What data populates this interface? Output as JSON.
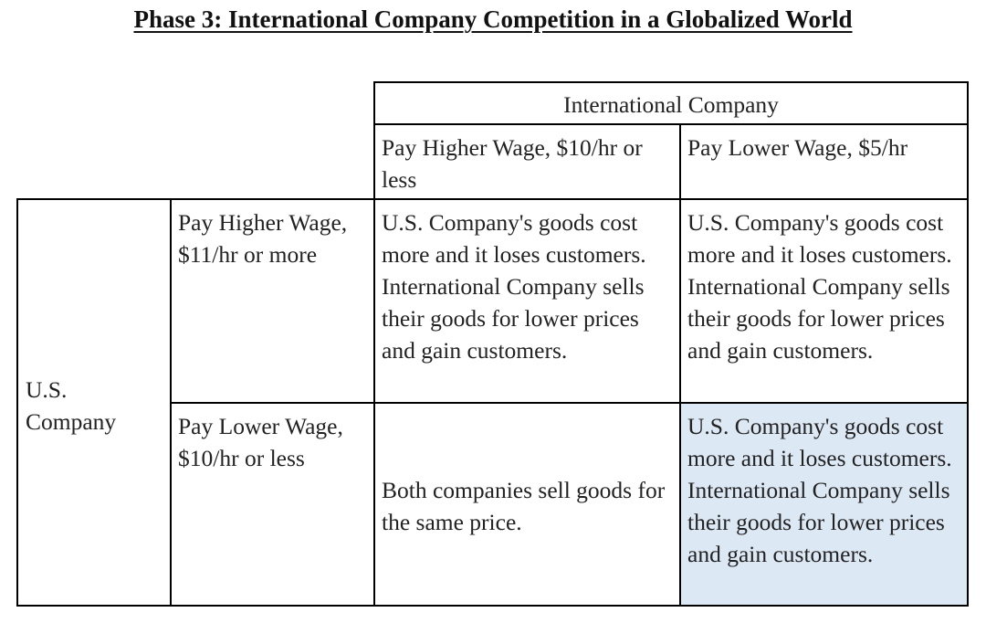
{
  "title": "Phase 3: International Company Competition in a Globalized World",
  "colors": {
    "border": "#000000",
    "text": "#222222",
    "highlight_cell": "#dde8f5"
  },
  "table": {
    "column_group_header": "International Company",
    "column_headers": [
      "Pay Higher Wage, $10/hr or less",
      "Pay Lower Wage, $5/hr"
    ],
    "row_group_header": "U.S. Company",
    "rows": [
      {
        "header": "Pay Higher Wage, $11/hr or more",
        "cells": [
          "U.S. Company's goods cost more and it loses customers. International Company sells their goods for lower prices and gain customers.",
          "U.S. Company's goods cost more and it loses customers. International Company sells their goods for lower prices and gain customers."
        ]
      },
      {
        "header": "Pay Lower Wage, $10/hr or less",
        "cells": [
          "Both companies sell goods for the same price.",
          "U.S. Company's goods cost more and it loses customers. International Company sells their goods for lower prices and gain customers."
        ],
        "highlighted_cell": 1
      }
    ]
  }
}
